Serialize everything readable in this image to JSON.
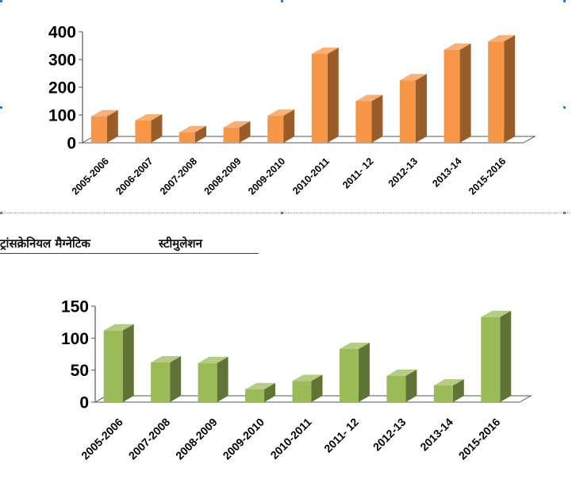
{
  "heading": {
    "part1": "ट्रांसक्रेनियल मैग्नेटिक",
    "part2": "स्टीमुलेशन"
  },
  "chart_data": [
    {
      "type": "bar",
      "categories": [
        "2005-2006",
        "2006-2007",
        "2007-2008",
        "2008-2009",
        "2009-2010",
        "2010-2011",
        "2011- 12",
        "2012-13",
        "2013-14",
        "2015-2016"
      ],
      "values": [
        95,
        80,
        38,
        55,
        97,
        320,
        150,
        225,
        335,
        365
      ],
      "ylim": [
        0,
        400
      ],
      "yticks": [
        0,
        100,
        200,
        300,
        400
      ],
      "color": "#f79646",
      "grid": false,
      "legend": "none",
      "style": "3d"
    },
    {
      "type": "bar",
      "categories": [
        "2005-2006",
        "2007-2008",
        "2008-2009",
        "2009-2010",
        "2010-2011",
        "2011- 12",
        "2012-13",
        "2013-14",
        "2015-2016"
      ],
      "values": [
        112,
        62,
        61,
        20,
        33,
        83,
        41,
        26,
        133
      ],
      "ylim": [
        0,
        150
      ],
      "yticks": [
        0,
        50,
        100,
        150
      ],
      "color": "#9bbb59",
      "grid": false,
      "legend": "none",
      "style": "3d"
    }
  ]
}
